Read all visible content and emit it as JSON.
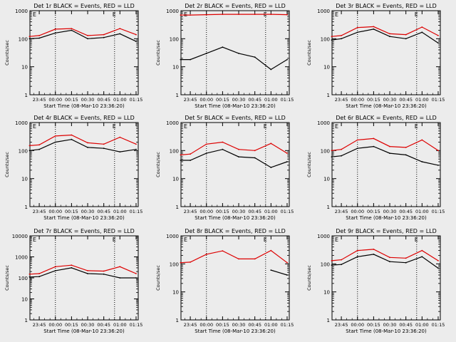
{
  "colors": {
    "events": "#000000",
    "lld": "#dd0000",
    "axis": "#000000",
    "background": "#ececec",
    "marker": "#000000"
  },
  "common": {
    "ylabel": "Counts/sec",
    "xlabel": "Start Time (08-Mar-10 23:36:20)",
    "yticks": [
      "1",
      "10",
      "100",
      "1000"
    ],
    "yticks_big": [
      "1",
      "10",
      "100",
      "1000",
      "10000"
    ],
    "xticks": [
      "23:45",
      "00:00",
      "00:15",
      "00:30",
      "00:45",
      "01:00",
      "01:15"
    ],
    "marker": "E"
  },
  "chart_data": [
    {
      "type": "line",
      "title": "Det 1r BLACK = Events, RED = LLD",
      "ylim": [
        1,
        1000
      ],
      "yscale": "log",
      "x": [
        "23:36",
        "23:45",
        "00:00",
        "00:15",
        "00:30",
        "00:45",
        "01:00",
        "01:15"
      ],
      "series": [
        {
          "name": "Events",
          "values": [
            100,
            105,
            160,
            200,
            100,
            110,
            150,
            80
          ]
        },
        {
          "name": "LLD",
          "values": [
            120,
            130,
            220,
            230,
            130,
            140,
            230,
            140
          ]
        }
      ]
    },
    {
      "type": "line",
      "title": "Det 2r BLACK = Events, RED = LLD",
      "ylim": [
        1,
        1000
      ],
      "yscale": "log",
      "x": [
        "23:36",
        "23:45",
        "00:00",
        "00:15",
        "00:30",
        "00:45",
        "01:00",
        "01:15"
      ],
      "series": [
        {
          "name": "Events",
          "values": [
            18,
            18,
            30,
            50,
            30,
            22,
            8,
            18
          ]
        },
        {
          "name": "LLD",
          "values": [
            700,
            700,
            720,
            740,
            740,
            740,
            740,
            720
          ]
        }
      ]
    },
    {
      "type": "line",
      "title": "Det 3r BLACK = Events, RED = LLD",
      "ylim": [
        1,
        1000
      ],
      "yscale": "log",
      "x": [
        "23:36",
        "23:45",
        "00:00",
        "00:15",
        "00:30",
        "00:45",
        "01:00",
        "01:15"
      ],
      "series": [
        {
          "name": "Events",
          "values": [
            90,
            100,
            170,
            220,
            120,
            100,
            170,
            70
          ]
        },
        {
          "name": "LLD",
          "values": [
            120,
            130,
            250,
            270,
            150,
            140,
            260,
            130
          ]
        }
      ]
    },
    {
      "type": "line",
      "title": "Det 4r BLACK = Events, RED = LLD",
      "ylim": [
        1,
        1000
      ],
      "yscale": "log",
      "x": [
        "23:36",
        "23:45",
        "00:00",
        "00:15",
        "00:30",
        "00:45",
        "01:00",
        "01:15"
      ],
      "series": [
        {
          "name": "Events",
          "values": [
            100,
            110,
            200,
            250,
            130,
            120,
            90,
            110
          ]
        },
        {
          "name": "LLD",
          "values": [
            150,
            160,
            330,
            360,
            190,
            170,
            300,
            170
          ]
        }
      ]
    },
    {
      "type": "line",
      "title": "Det 5r BLACK = Events, RED = LLD",
      "ylim": [
        1,
        1000
      ],
      "yscale": "log",
      "x": [
        "23:36",
        "23:45",
        "00:00",
        "00:15",
        "00:30",
        "00:45",
        "01:00",
        "01:15"
      ],
      "series": [
        {
          "name": "Events",
          "values": [
            45,
            45,
            80,
            110,
            60,
            55,
            25,
            40
          ]
        },
        {
          "name": "LLD",
          "values": [
            70,
            75,
            170,
            200,
            110,
            100,
            180,
            80
          ]
        }
      ]
    },
    {
      "type": "line",
      "title": "Det 6r BLACK = Events, RED = LLD",
      "ylim": [
        1,
        1000
      ],
      "yscale": "log",
      "x": [
        "23:36",
        "23:45",
        "00:00",
        "00:15",
        "00:30",
        "00:45",
        "01:00",
        "01:15"
      ],
      "series": [
        {
          "name": "Events",
          "values": [
            60,
            65,
            120,
            140,
            80,
            70,
            40,
            30
          ]
        },
        {
          "name": "LLD",
          "values": [
            100,
            110,
            240,
            270,
            140,
            130,
            240,
            100
          ]
        }
      ]
    },
    {
      "type": "line",
      "title": "Det 7r BLACK = Events, RED = LLD",
      "ylim": [
        1,
        10000
      ],
      "yscale": "log",
      "x": [
        "23:36",
        "23:45",
        "00:00",
        "00:15",
        "00:30",
        "00:45",
        "01:00",
        "01:15"
      ],
      "series": [
        {
          "name": "Events",
          "values": [
            110,
            115,
            220,
            300,
            160,
            150,
            100,
            100
          ]
        },
        {
          "name": "LLD",
          "values": [
            150,
            160,
            340,
            400,
            220,
            210,
            340,
            160
          ]
        }
      ]
    },
    {
      "type": "line",
      "title": "Det 8r BLACK = Events, RED = LLD",
      "ylim": [
        1,
        1000
      ],
      "yscale": "log",
      "x": [
        "23:36",
        "23:45",
        "00:00",
        "00:15",
        "00:30",
        "00:45",
        "01:00",
        "01:15"
      ],
      "series": [
        {
          "name": "Events",
          "values": [
            null,
            null,
            null,
            null,
            null,
            null,
            60,
            40
          ]
        },
        {
          "name": "LLD",
          "values": [
            110,
            115,
            220,
            290,
            150,
            150,
            300,
            110
          ]
        }
      ]
    },
    {
      "type": "line",
      "title": "Det 9r BLACK = Events, RED = LLD",
      "ylim": [
        1,
        1000
      ],
      "yscale": "log",
      "x": [
        "23:36",
        "23:45",
        "00:00",
        "00:15",
        "00:30",
        "00:45",
        "01:00",
        "01:15"
      ],
      "series": [
        {
          "name": "Events",
          "values": [
            90,
            95,
            180,
            220,
            120,
            110,
            180,
            70
          ]
        },
        {
          "name": "LLD",
          "values": [
            130,
            140,
            300,
            330,
            170,
            160,
            300,
            130
          ]
        }
      ]
    }
  ]
}
